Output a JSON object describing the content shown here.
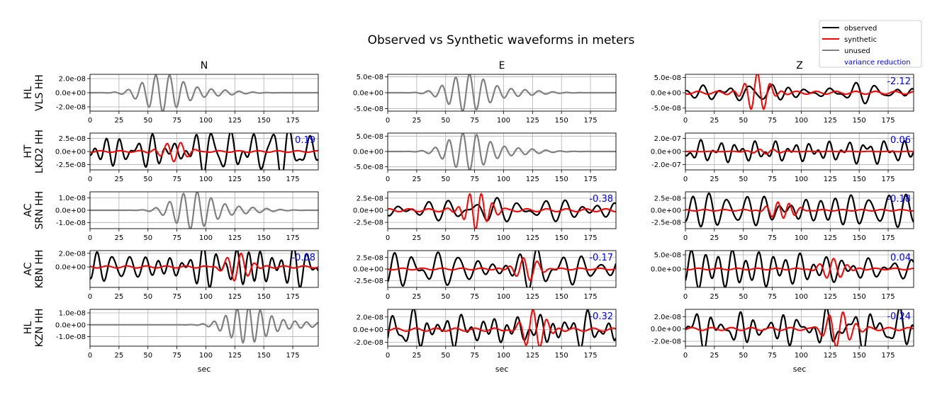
{
  "chart_data": {
    "type": "line",
    "title": "Observed vs Synthetic waveforms in meters",
    "xlabel": "sec",
    "xlim": [
      0,
      197
    ],
    "xticks": [
      0,
      25,
      50,
      75,
      100,
      125,
      150,
      175
    ],
    "grid": true,
    "legend": {
      "placement": "top-right",
      "entries": [
        {
          "label": "observed",
          "color": "#000000"
        },
        {
          "label": "synthetic",
          "color": "#ff0000"
        },
        {
          "label": "unused",
          "color": "#808080"
        },
        {
          "label": "variance reduction",
          "color": "#0000ff"
        }
      ]
    },
    "columns": [
      "N",
      "E",
      "Z"
    ],
    "stations": [
      {
        "label1": "HL",
        "label2": "VLS HH"
      },
      {
        "label1": "HT",
        "label2": "LKD2 HH"
      },
      {
        "label1": "AC",
        "label2": "SRN HH"
      },
      {
        "label1": "AC",
        "label2": "KBN HH"
      },
      {
        "label1": "HL",
        "label2": "KZN HH"
      }
    ],
    "panels": [
      [
        {
          "status": "unused",
          "ylim": [
            -2.6e-08,
            2.6e-08
          ],
          "yticks": [
            2e-08,
            0,
            -2e-08
          ],
          "ytick_labels": [
            "2.0e-08",
            "0.0e+00",
            "-2.0e-08"
          ],
          "vr": null,
          "t0": 62,
          "amp": 2.6e-08,
          "period": 12,
          "seed": 1
        },
        {
          "status": "unused",
          "ylim": [
            -5.8e-08,
            5.8e-08
          ],
          "yticks": [
            5e-08,
            0,
            -5e-08
          ],
          "ytick_labels": [
            "5.0e-08",
            "0.0e+00",
            "-5.0e-08"
          ],
          "vr": null,
          "t0": 68,
          "amp": 5.8e-08,
          "period": 12,
          "seed": 2
        },
        {
          "status": "used",
          "ylim": [
            -6e-08,
            6e-08
          ],
          "yticks": [
            5e-08,
            0,
            -5e-08
          ],
          "ytick_labels": [
            "5.0e-08",
            "0.0e+00",
            "-5.0e-08"
          ],
          "vr": "-2.12",
          "obs_amp": 2.3e-08,
          "syn_t0": 62,
          "syn_amp": 6e-08,
          "syn_period": 11,
          "seed": 3
        }
      ],
      [
        {
          "status": "used",
          "ylim": [
            -3.5e-08,
            3.5e-08
          ],
          "yticks": [
            2.5e-08,
            0,
            -2.5e-08
          ],
          "ytick_labels": [
            "2.5e-08",
            "0.0e+00",
            "-2.5e-08"
          ],
          "vr": "0.19",
          "obs_amp": 3.2e-08,
          "syn_t0": 72,
          "syn_amp": 1.9e-08,
          "syn_period": 12,
          "seed": 4
        },
        {
          "status": "unused",
          "ylim": [
            -6e-08,
            6e-08
          ],
          "yticks": [
            5e-08,
            0,
            -5e-08
          ],
          "ytick_labels": [
            "5.0e-08",
            "0.0e+00",
            "-5.0e-08"
          ],
          "vr": null,
          "t0": 68,
          "amp": 6e-08,
          "period": 12,
          "seed": 5
        },
        {
          "status": "used",
          "ylim": [
            -2.8e-07,
            2.8e-07
          ],
          "yticks": [
            2e-07,
            0,
            -2e-07
          ],
          "ytick_labels": [
            "2.0e-07",
            "0.0e+00",
            "-2.0e-07"
          ],
          "vr": "0.06",
          "obs_amp": 2.1e-07,
          "syn_t0": 68,
          "syn_amp": 4e-08,
          "syn_period": 12,
          "seed": 6
        }
      ],
      [
        {
          "status": "unused",
          "ylim": [
            -1.5e-08,
            1.5e-08
          ],
          "yticks": [
            1e-08,
            0,
            -1e-08
          ],
          "ytick_labels": [
            "1.0e-08",
            "0.0e+00",
            "-1.0e-08"
          ],
          "vr": null,
          "t0": 88,
          "amp": 1.5e-08,
          "period": 12,
          "seed": 7
        },
        {
          "status": "used",
          "ylim": [
            -3.8e-08,
            3.8e-08
          ],
          "yticks": [
            2.5e-08,
            0,
            -2.5e-08
          ],
          "ytick_labels": [
            "2.5e-08",
            "0.0e+00",
            "-2.5e-08"
          ],
          "vr": "-0.38",
          "obs_amp": 2.2e-08,
          "syn_t0": 77,
          "syn_amp": 3.8e-08,
          "syn_period": 10,
          "seed": 8
        },
        {
          "status": "used",
          "ylim": [
            -3.8e-08,
            3.8e-08
          ],
          "yticks": [
            2.5e-08,
            0,
            -2.5e-08
          ],
          "ytick_labels": [
            "2.5e-08",
            "0.0e+00",
            "-2.5e-08"
          ],
          "vr": "-0.18",
          "obs_amp": 3e-08,
          "syn_t0": 83,
          "syn_amp": 1.8e-08,
          "syn_period": 10,
          "seed": 9
        }
      ],
      [
        {
          "status": "used",
          "ylim": [
            -3e-08,
            2.4e-08
          ],
          "yticks": [
            2e-08,
            0
          ],
          "ytick_labels": [
            "2.0e-08",
            "0.0e+00"
          ],
          "vr": "-0.08",
          "obs_amp": 2.2e-08,
          "syn_t0": 128,
          "syn_amp": 2e-08,
          "syn_period": 12,
          "seed": 10
        },
        {
          "status": "used",
          "ylim": [
            -4e-08,
            4e-08
          ],
          "yticks": [
            2.5e-08,
            0,
            -2.5e-08
          ],
          "ytick_labels": [
            "2.5e-08",
            "0.0e+00",
            "-2.5e-08"
          ],
          "vr": "-0.17",
          "obs_amp": 3.5e-08,
          "syn_t0": 120,
          "syn_amp": 2.4e-08,
          "syn_period": 12,
          "seed": 11
        },
        {
          "status": "used",
          "ylim": [
            -6.5e-08,
            6.5e-08
          ],
          "yticks": [
            5e-08,
            0
          ],
          "ytick_labels": [
            "5.0e-08",
            "0.0e+00"
          ],
          "vr": "0.04",
          "obs_amp": 5.5e-08,
          "syn_t0": 128,
          "syn_amp": 3.5e-08,
          "syn_period": 12,
          "seed": 12
        }
      ],
      [
        {
          "status": "unused",
          "ylim": [
            -1.8e-08,
            1.3e-08
          ],
          "yticks": [
            1e-08,
            0,
            -1e-08
          ],
          "ytick_labels": [
            "1.0e-08",
            "0.0e+00",
            "-1.0e-08"
          ],
          "vr": null,
          "t0": 135,
          "amp": 1.5e-08,
          "period": 10,
          "seed": 13
        },
        {
          "status": "used",
          "ylim": [
            -2.6e-08,
            3.2e-08
          ],
          "yticks": [
            2e-08,
            0,
            -2e-08
          ],
          "ytick_labels": [
            "2.0e-08",
            "0.0e+00",
            "-2.0e-08"
          ],
          "vr": "-0.32",
          "obs_amp": 2.6e-08,
          "syn_t0": 127,
          "syn_amp": 3e-08,
          "syn_period": 12,
          "seed": 14
        },
        {
          "status": "used",
          "ylim": [
            -2.8e-08,
            3.2e-08
          ],
          "yticks": [
            2e-08,
            0,
            -2e-08
          ],
          "ytick_labels": [
            "2.0e-08",
            "0.0e+00",
            "-2.0e-08"
          ],
          "vr": "-0.24",
          "obs_amp": 2.6e-08,
          "syn_t0": 133,
          "syn_amp": 3e-08,
          "syn_period": 12,
          "seed": 15
        }
      ]
    ]
  }
}
